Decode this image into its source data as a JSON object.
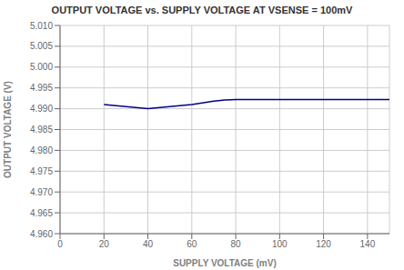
{
  "chart_data": {
    "type": "line",
    "title": "OUTPUT VOLTAGE vs. SUPPLY VOLTAGE AT VSENSE = 100mV",
    "xlabel": "SUPPLY VOLTAGE (mV)",
    "ylabel": "OUTPUT VOLTAGE (V)",
    "x": [
      20,
      30,
      40,
      50,
      60,
      70,
      75,
      80,
      90,
      100,
      110,
      120,
      130,
      140,
      150
    ],
    "values": [
      4.991,
      4.9905,
      4.99,
      4.9905,
      4.991,
      4.9918,
      4.9921,
      4.9922,
      4.9922,
      4.9922,
      4.9922,
      4.9922,
      4.9922,
      4.9922,
      4.9922
    ],
    "color": "#00008B",
    "xlim": [
      0,
      150
    ],
    "ylim": [
      4.96,
      5.01
    ],
    "xticks": [
      0,
      20,
      40,
      60,
      80,
      100,
      120,
      140
    ],
    "yticks": [
      {
        "value": 4.96,
        "label": "4.960"
      },
      4.965,
      {
        "value": 4.97,
        "label": "4.970"
      },
      4.975,
      {
        "value": 4.98,
        "label": "4.980"
      },
      4.985,
      {
        "value": 4.99,
        "label": "4.990"
      },
      4.995,
      {
        "value": 5.0,
        "label": "5.000"
      },
      5.005,
      {
        "value": 5.01,
        "label": "5.010"
      }
    ],
    "grid": true
  }
}
